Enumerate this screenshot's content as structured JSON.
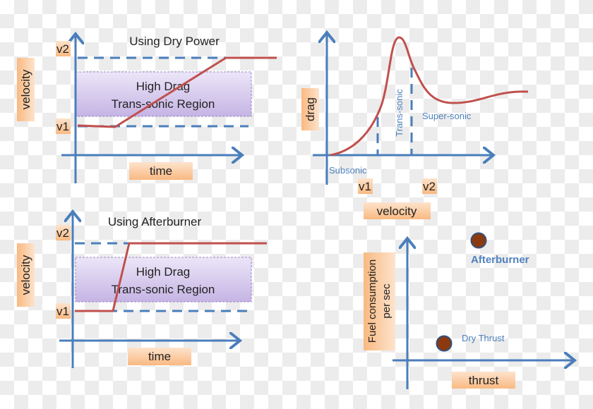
{
  "colors": {
    "axis": "#4a7ebb",
    "curve": "#c0504d",
    "label_box": "#fbc99a",
    "region": "#c8b8e8",
    "dot": "#8b3a0f"
  },
  "dry": {
    "title": "Using Dry Power",
    "y_label": "velocity",
    "x_label": "time",
    "v1": "v1",
    "v2": "v2",
    "region_line1": "High Drag",
    "region_line2": "Trans-sonic Region"
  },
  "afterburner": {
    "title": "Using Afterburner",
    "y_label": "velocity",
    "x_label": "time",
    "v1": "v1",
    "v2": "v2",
    "region_line1": "High Drag",
    "region_line2": "Trans-sonic Region"
  },
  "drag": {
    "y_label": "drag",
    "x_label": "velocity",
    "v1": "v1",
    "v2": "v2",
    "subsonic": "Subsonic",
    "transsonic": "Trans-sonic",
    "supersonic": "Super-sonic"
  },
  "fuel": {
    "y_label_line1": "Fuel consumption",
    "y_label_line2": "per sec",
    "x_label": "thrust",
    "afterburner": "Afterburner",
    "dry_thrust": "Dry Thrust"
  }
}
